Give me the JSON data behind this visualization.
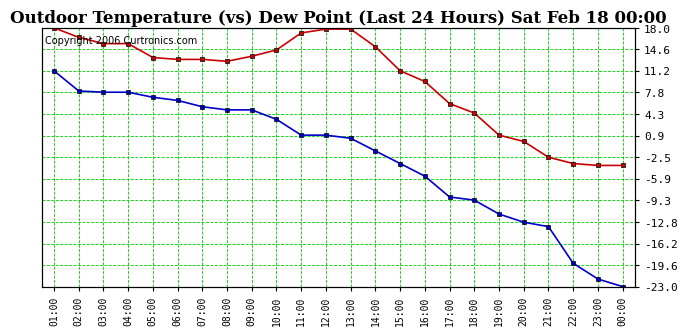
{
  "title": "Outdoor Temperature (vs) Dew Point (Last 24 Hours) Sat Feb 18 00:00",
  "copyright": "Copyright 2006 Curtronics.com",
  "x_labels": [
    "01:00",
    "02:00",
    "03:00",
    "04:00",
    "05:00",
    "06:00",
    "07:00",
    "08:00",
    "09:00",
    "10:00",
    "11:00",
    "12:00",
    "13:00",
    "14:00",
    "15:00",
    "16:00",
    "17:00",
    "18:00",
    "19:00",
    "20:00",
    "21:00",
    "22:00",
    "23:00",
    "00:00"
  ],
  "temp_data": [
    18.0,
    16.5,
    15.5,
    15.5,
    13.3,
    13.0,
    13.0,
    12.7,
    13.5,
    14.5,
    17.2,
    17.8,
    17.8,
    15.0,
    11.2,
    9.5,
    6.0,
    4.5,
    1.0,
    0.0,
    -2.5,
    -3.5,
    -3.8,
    -3.8
  ],
  "dew_data": [
    11.2,
    8.0,
    7.8,
    7.8,
    7.0,
    6.5,
    5.5,
    5.0,
    5.0,
    3.5,
    1.0,
    1.0,
    0.5,
    -1.5,
    -3.5,
    -5.5,
    -8.8,
    -9.3,
    -11.5,
    -12.8,
    -13.5,
    -19.3,
    -21.8,
    -23.0
  ],
  "y_ticks": [
    18.0,
    14.6,
    11.2,
    7.8,
    4.3,
    0.9,
    -2.5,
    -5.9,
    -9.3,
    -12.8,
    -16.2,
    -19.6,
    -23.0
  ],
  "y_min": -23.0,
  "y_max": 18.0,
  "temp_color": "#cc0000",
  "dew_color": "#0000cc",
  "bg_color": "#ffffff",
  "grid_color": "#00cc00",
  "title_fontsize": 12,
  "copyright_fontsize": 7
}
